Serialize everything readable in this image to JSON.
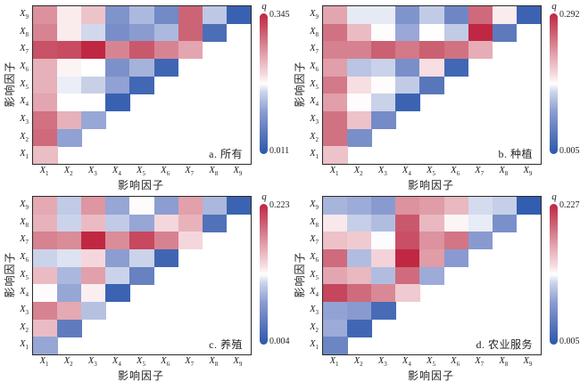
{
  "figure": {
    "x_axis_title": "影响因子",
    "y_axis_title": "影响因子",
    "tick_base": "X",
    "x_tick_subs": [
      "1",
      "2",
      "3",
      "4",
      "5",
      "6",
      "7",
      "8",
      "9"
    ],
    "y_tick_subs": [
      "9",
      "8",
      "7",
      "6",
      "5",
      "4",
      "3",
      "2",
      "1"
    ]
  },
  "colormap": {
    "stops": [
      {
        "t": 0.0,
        "c": "#2b58ae"
      },
      {
        "t": 0.13,
        "c": "#5574b9"
      },
      {
        "t": 0.3,
        "c": "#8b9cd1"
      },
      {
        "t": 0.44,
        "c": "#ccd4ea"
      },
      {
        "t": 0.5,
        "c": "#ffffff"
      },
      {
        "t": 0.56,
        "c": "#f6dde1"
      },
      {
        "t": 0.7,
        "c": "#e3a5af"
      },
      {
        "t": 0.85,
        "c": "#cc6476"
      },
      {
        "t": 1.0,
        "c": "#c02743"
      }
    ]
  },
  "chart_data": [
    {
      "type": "heatmap",
      "panel": "a",
      "caption": "a. 所有",
      "colorbar_title": "q",
      "qmin": 0.011,
      "qmax": 0.345,
      "qmin_label": "0.011",
      "qmax_label": "0.345",
      "x_categories": [
        "X1",
        "X2",
        "X3",
        "X4",
        "X5",
        "X6",
        "X7",
        "X8",
        "X9"
      ],
      "y_categories": [
        "X9",
        "X8",
        "X7",
        "X6",
        "X5",
        "X4",
        "X3",
        "X2",
        "X1"
      ],
      "values": [
        [
          0.26,
          0.19,
          0.22,
          0.1,
          0.135,
          0.085,
          0.295,
          0.148,
          0.025
        ],
        [
          0.27,
          0.19,
          0.16,
          0.092,
          0.11,
          0.135,
          0.295,
          0.045
        ],
        [
          0.31,
          0.315,
          0.345,
          0.27,
          0.305,
          0.27,
          0.245
        ],
        [
          0.235,
          0.185,
          0.178,
          0.095,
          0.13,
          0.032
        ],
        [
          0.235,
          0.17,
          0.155,
          0.115,
          0.035
        ],
        [
          0.245,
          0.178,
          0.178,
          0.025
        ],
        [
          0.285,
          0.235,
          0.12
        ],
        [
          0.29,
          0.115
        ],
        [
          0.225
        ]
      ]
    },
    {
      "type": "heatmap",
      "panel": "b",
      "caption": "b. 种植",
      "colorbar_title": "q",
      "qmin": 0.005,
      "qmax": 0.292,
      "qmin_label": "0.005",
      "qmax_label": "0.292",
      "x_categories": [
        "X1",
        "X2",
        "X3",
        "X4",
        "X5",
        "X6",
        "X7",
        "X8",
        "X9"
      ],
      "y_categories": [
        "X9",
        "X8",
        "X7",
        "X6",
        "X5",
        "X4",
        "X3",
        "X2",
        "X1"
      ],
      "values": [
        [
          0.205,
          0.14,
          0.14,
          0.08,
          0.125,
          0.065,
          0.245,
          0.158,
          0.02
        ],
        [
          0.24,
          0.19,
          0.15,
          0.1,
          0.148,
          0.125,
          0.292,
          0.05
        ],
        [
          0.23,
          0.23,
          0.252,
          0.235,
          0.252,
          0.24,
          0.2
        ],
        [
          0.21,
          0.12,
          0.13,
          0.075,
          0.165,
          0.025
        ],
        [
          0.235,
          0.165,
          0.15,
          0.125,
          0.045
        ],
        [
          0.21,
          0.15,
          0.13,
          0.02
        ],
        [
          0.24,
          0.185,
          0.07
        ],
        [
          0.24,
          0.075
        ],
        [
          0.185
        ]
      ]
    },
    {
      "type": "heatmap",
      "panel": "c",
      "caption": "c. 养殖",
      "colorbar_title": "q",
      "qmin": 0.004,
      "qmax": 0.223,
      "qmin_label": "0.004",
      "qmax_label": "0.223",
      "x_categories": [
        "X1",
        "X2",
        "X3",
        "X4",
        "X5",
        "X6",
        "X7",
        "X8",
        "X9"
      ],
      "y_categories": [
        "X9",
        "X8",
        "X7",
        "X6",
        "X5",
        "X4",
        "X3",
        "X2",
        "X1"
      ],
      "values": [
        [
          0.155,
          0.095,
          0.165,
          0.075,
          0.115,
          0.07,
          0.16,
          0.085,
          0.015
        ],
        [
          0.15,
          0.1,
          0.145,
          0.095,
          0.075,
          0.13,
          0.15,
          0.03
        ],
        [
          0.175,
          0.17,
          0.223,
          0.17,
          0.205,
          0.175,
          0.13
        ],
        [
          0.1,
          0.105,
          0.13,
          0.07,
          0.1,
          0.018
        ],
        [
          0.145,
          0.085,
          0.16,
          0.1,
          0.045
        ],
        [
          0.115,
          0.075,
          0.12,
          0.015
        ],
        [
          0.175,
          0.155,
          0.09
        ],
        [
          0.145,
          0.04
        ],
        [
          0.075
        ]
      ]
    },
    {
      "type": "heatmap",
      "panel": "d",
      "caption": "d. 农业服务",
      "colorbar_title": "q",
      "qmin": 0.005,
      "qmax": 0.227,
      "qmin_label": "0.005",
      "qmax_label": "0.227",
      "x_categories": [
        "X1",
        "X2",
        "X3",
        "X4",
        "X5",
        "X6",
        "X7",
        "X8",
        "X9"
      ],
      "y_categories": [
        "X9",
        "X8",
        "X7",
        "X6",
        "X5",
        "X4",
        "X3",
        "X2",
        "X1"
      ],
      "values": [
        [
          0.085,
          0.08,
          0.07,
          0.17,
          0.165,
          0.15,
          0.105,
          0.1,
          0.01
        ],
        [
          0.125,
          0.1,
          0.09,
          0.2,
          0.15,
          0.12,
          0.11,
          0.06
        ],
        [
          0.145,
          0.14,
          0.115,
          0.205,
          0.17,
          0.185,
          0.07
        ],
        [
          0.19,
          0.09,
          0.135,
          0.227,
          0.165,
          0.07
        ],
        [
          0.16,
          0.15,
          0.09,
          0.19,
          0.08
        ],
        [
          0.21,
          0.19,
          0.175,
          0.14
        ],
        [
          0.075,
          0.07,
          0.025
        ],
        [
          0.08,
          0.02
        ],
        [
          0.05
        ]
      ]
    }
  ]
}
